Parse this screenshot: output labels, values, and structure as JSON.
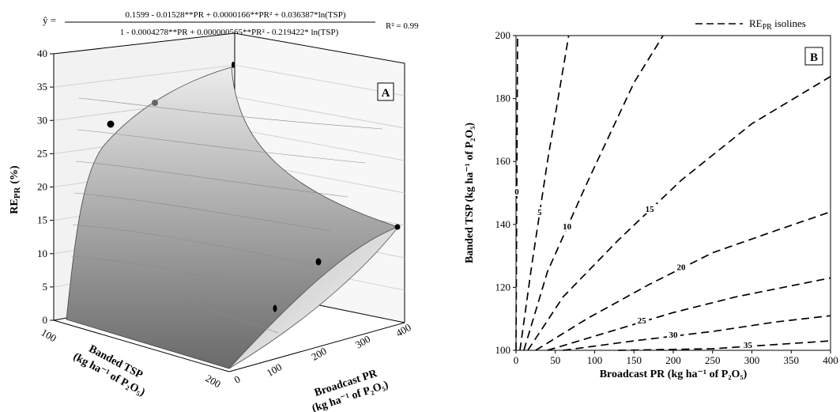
{
  "chart_data": [
    {
      "type": "surface",
      "panel_label": "A",
      "equation": {
        "lhs": "ŷ =",
        "numerator": "0.1599 - 0.01528**PR + 0.0000166**PR² + 0.036387*ln(TSP)",
        "denominator": "1 - 0.0004278**PR + 0.000000565**PR² - 0.219422* ln(TSP)",
        "r_squared": "R² = 0.99"
      },
      "z_axis": {
        "label_main": "RE",
        "label_sub": "PR",
        "label_unit": "(%)",
        "ticks": [
          "0",
          "5",
          "10",
          "15",
          "20",
          "25",
          "30",
          "35",
          "40"
        ],
        "range": [
          0,
          40
        ]
      },
      "x_axis": {
        "label_line1": "Banded TSP",
        "label_line2": "(kg ha⁻¹ of P₂O₅)",
        "ticks": [
          "100",
          "200"
        ],
        "range": [
          100,
          200
        ]
      },
      "y_axis": {
        "label_line1": "Broadcast PR",
        "label_line2": "(kg ha⁻¹ of P₂O₅)",
        "ticks": [
          "0",
          "100",
          "200",
          "300",
          "400"
        ],
        "range": [
          0,
          400
        ]
      },
      "observed_points": [
        {
          "pr": 0,
          "tsp": 200,
          "re": 29
        },
        {
          "pr": 0,
          "tsp": 150,
          "re": 32
        },
        {
          "pr": 0,
          "tsp": 100,
          "re": 38
        },
        {
          "pr": 200,
          "tsp": 100,
          "re": 1
        },
        {
          "pr": 300,
          "tsp": 100,
          "re": 9
        },
        {
          "pr": 400,
          "tsp": 100,
          "re": 15
        }
      ]
    },
    {
      "type": "line",
      "panel_label": "B",
      "legend": "REPR isolines",
      "legend_main": "RE",
      "legend_sub": "PR",
      "legend_tail": " isolines",
      "legend_position": "top-right",
      "xlabel": "Broadcast PR (kg ha⁻¹ of  P₂O₅)",
      "ylabel": "Banded TSP (kg ha⁻¹ of  P₂O₅)",
      "xlim": [
        0,
        400
      ],
      "ylim": [
        100,
        200
      ],
      "xticks": [
        0,
        50,
        100,
        150,
        200,
        250,
        300,
        350,
        400
      ],
      "yticks": [
        100,
        120,
        140,
        160,
        180,
        200
      ],
      "series": [
        {
          "name": "0",
          "x": [
            0,
            2
          ],
          "y": [
            100,
            200
          ]
        },
        {
          "name": "5",
          "x": [
            5,
            20,
            40,
            67
          ],
          "y": [
            100,
            127,
            160,
            200
          ]
        },
        {
          "name": "10",
          "x": [
            10,
            40,
            90,
            150,
            187
          ],
          "y": [
            100,
            125,
            153,
            185,
            200
          ]
        },
        {
          "name": "15",
          "x": [
            15,
            60,
            130,
            210,
            300,
            400
          ],
          "y": [
            100,
            117,
            135,
            154,
            172,
            187
          ]
        },
        {
          "name": "20",
          "x": [
            25,
            90,
            170,
            250,
            330,
            400
          ],
          "y": [
            100,
            110,
            121,
            131,
            138,
            144
          ]
        },
        {
          "name": "25",
          "x": [
            40,
            120,
            200,
            280,
            400
          ],
          "y": [
            100,
            106,
            112,
            117,
            123
          ]
        },
        {
          "name": "30",
          "x": [
            60,
            150,
            250,
            330,
            400
          ],
          "y": [
            100,
            103,
            106,
            109,
            111
          ]
        },
        {
          "name": "35",
          "x": [
            130,
            250,
            340,
            400
          ],
          "y": [
            100,
            100.5,
            102,
            103
          ]
        }
      ],
      "isoline_labels": [
        "0",
        "5",
        "10",
        "15",
        "20",
        "25",
        "30",
        "35"
      ]
    }
  ]
}
